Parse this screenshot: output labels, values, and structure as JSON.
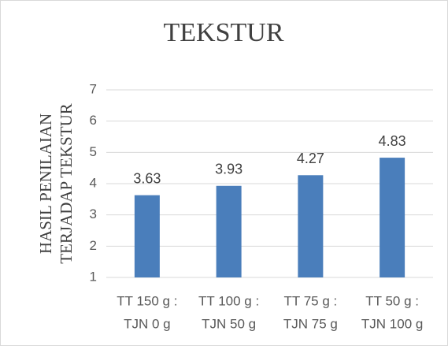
{
  "chart_data": {
    "type": "bar",
    "title": "TEKSTUR",
    "y_label": [
      "HASIL PENILAIAN",
      "TERJADAP TEKSTUR"
    ],
    "categories": [
      [
        "TT 150 g :",
        "TJN 0 g"
      ],
      [
        "TT 100 g :",
        "TJN 50 g"
      ],
      [
        "TT 75 g :",
        "TJN 75 g"
      ],
      [
        "TT 50 g :",
        "TJN 100 g"
      ]
    ],
    "values": [
      3.63,
      3.93,
      4.27,
      4.83
    ],
    "color": "#4a7ebb",
    "ylim": [
      1,
      7
    ],
    "yticks": [
      1,
      2,
      3,
      4,
      5,
      6,
      7
    ],
    "grid": true
  }
}
